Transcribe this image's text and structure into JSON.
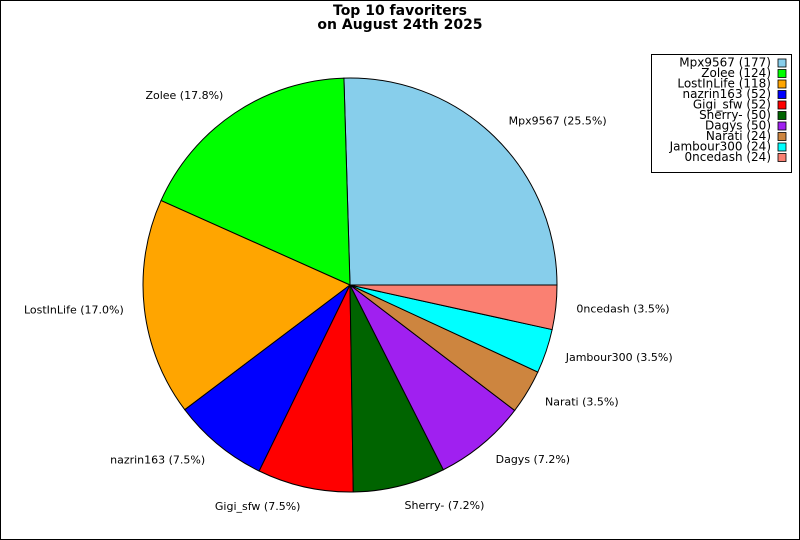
{
  "chart_data": {
    "type": "pie",
    "title": [
      "Top 10 favoriters",
      "on August 24th 2025"
    ],
    "categories": [
      "Mpx9567",
      "Zolee",
      "LostInLife",
      "nazrin163",
      "Gigi_sfw",
      "Sherry-",
      "Dagys",
      "Narati",
      "Jambour300",
      "0ncedash"
    ],
    "values": [
      177,
      124,
      118,
      52,
      52,
      50,
      50,
      24,
      24,
      24
    ],
    "value_labels": [
      "Mpx9567 (25.5%)",
      "Zolee (17.8%)",
      "LostInLife (17.0%)",
      "nazrin163 (7.5%)",
      "Gigi_sfw (7.5%)",
      "Sherry- (7.2%)",
      "Dagys (7.2%)",
      "Narati (3.5%)",
      "Jambour300 (3.5%)",
      "0ncedash (3.5%)"
    ],
    "legend_labels": [
      "Mpx9567 (177)",
      "Zolee (124)",
      "LostInLife (118)",
      "nazrin163 (52)",
      "Gigi_sfw (52)",
      "Sherry- (50)",
      "Dagys (50)",
      "Narati (24)",
      "Jambour300 (24)",
      "0ncedash (24)"
    ],
    "colors": [
      "#87ceeb",
      "#00ff00",
      "#ffa500",
      "#0000ff",
      "#ff0000",
      "#006400",
      "#a020f0",
      "#cd853f",
      "#00ffff",
      "#fa8072"
    ],
    "legend": "upper right"
  }
}
